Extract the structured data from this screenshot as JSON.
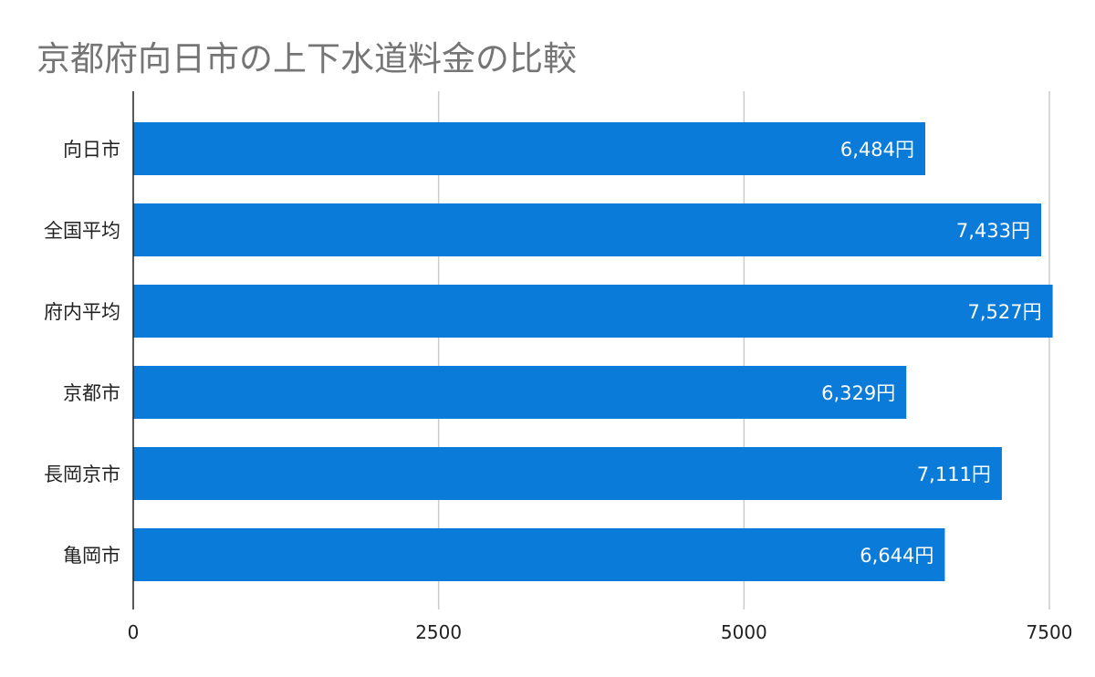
{
  "chart_data": {
    "type": "bar",
    "orientation": "horizontal",
    "title": "京都府向日市の上下水道料金の比較",
    "categories": [
      "向日市",
      "全国平均",
      "府内平均",
      "京都市",
      "長岡京市",
      "亀岡市"
    ],
    "values": [
      6484,
      7433,
      7527,
      6329,
      7111,
      6644
    ],
    "value_labels": [
      "6,484円",
      "7,433円",
      "7,527円",
      "6,329円",
      "7,111円",
      "6,644円"
    ],
    "xlim": [
      0,
      7500
    ],
    "x_ticks": [
      0,
      2500,
      5000,
      7500
    ],
    "x_tick_labels": [
      "0",
      "2500",
      "5000",
      "7500"
    ],
    "grid": "vertical",
    "legend": "none",
    "bar_color": "#0a7bd8",
    "grid_color": "#cccccc",
    "axis_color": "#222222"
  }
}
